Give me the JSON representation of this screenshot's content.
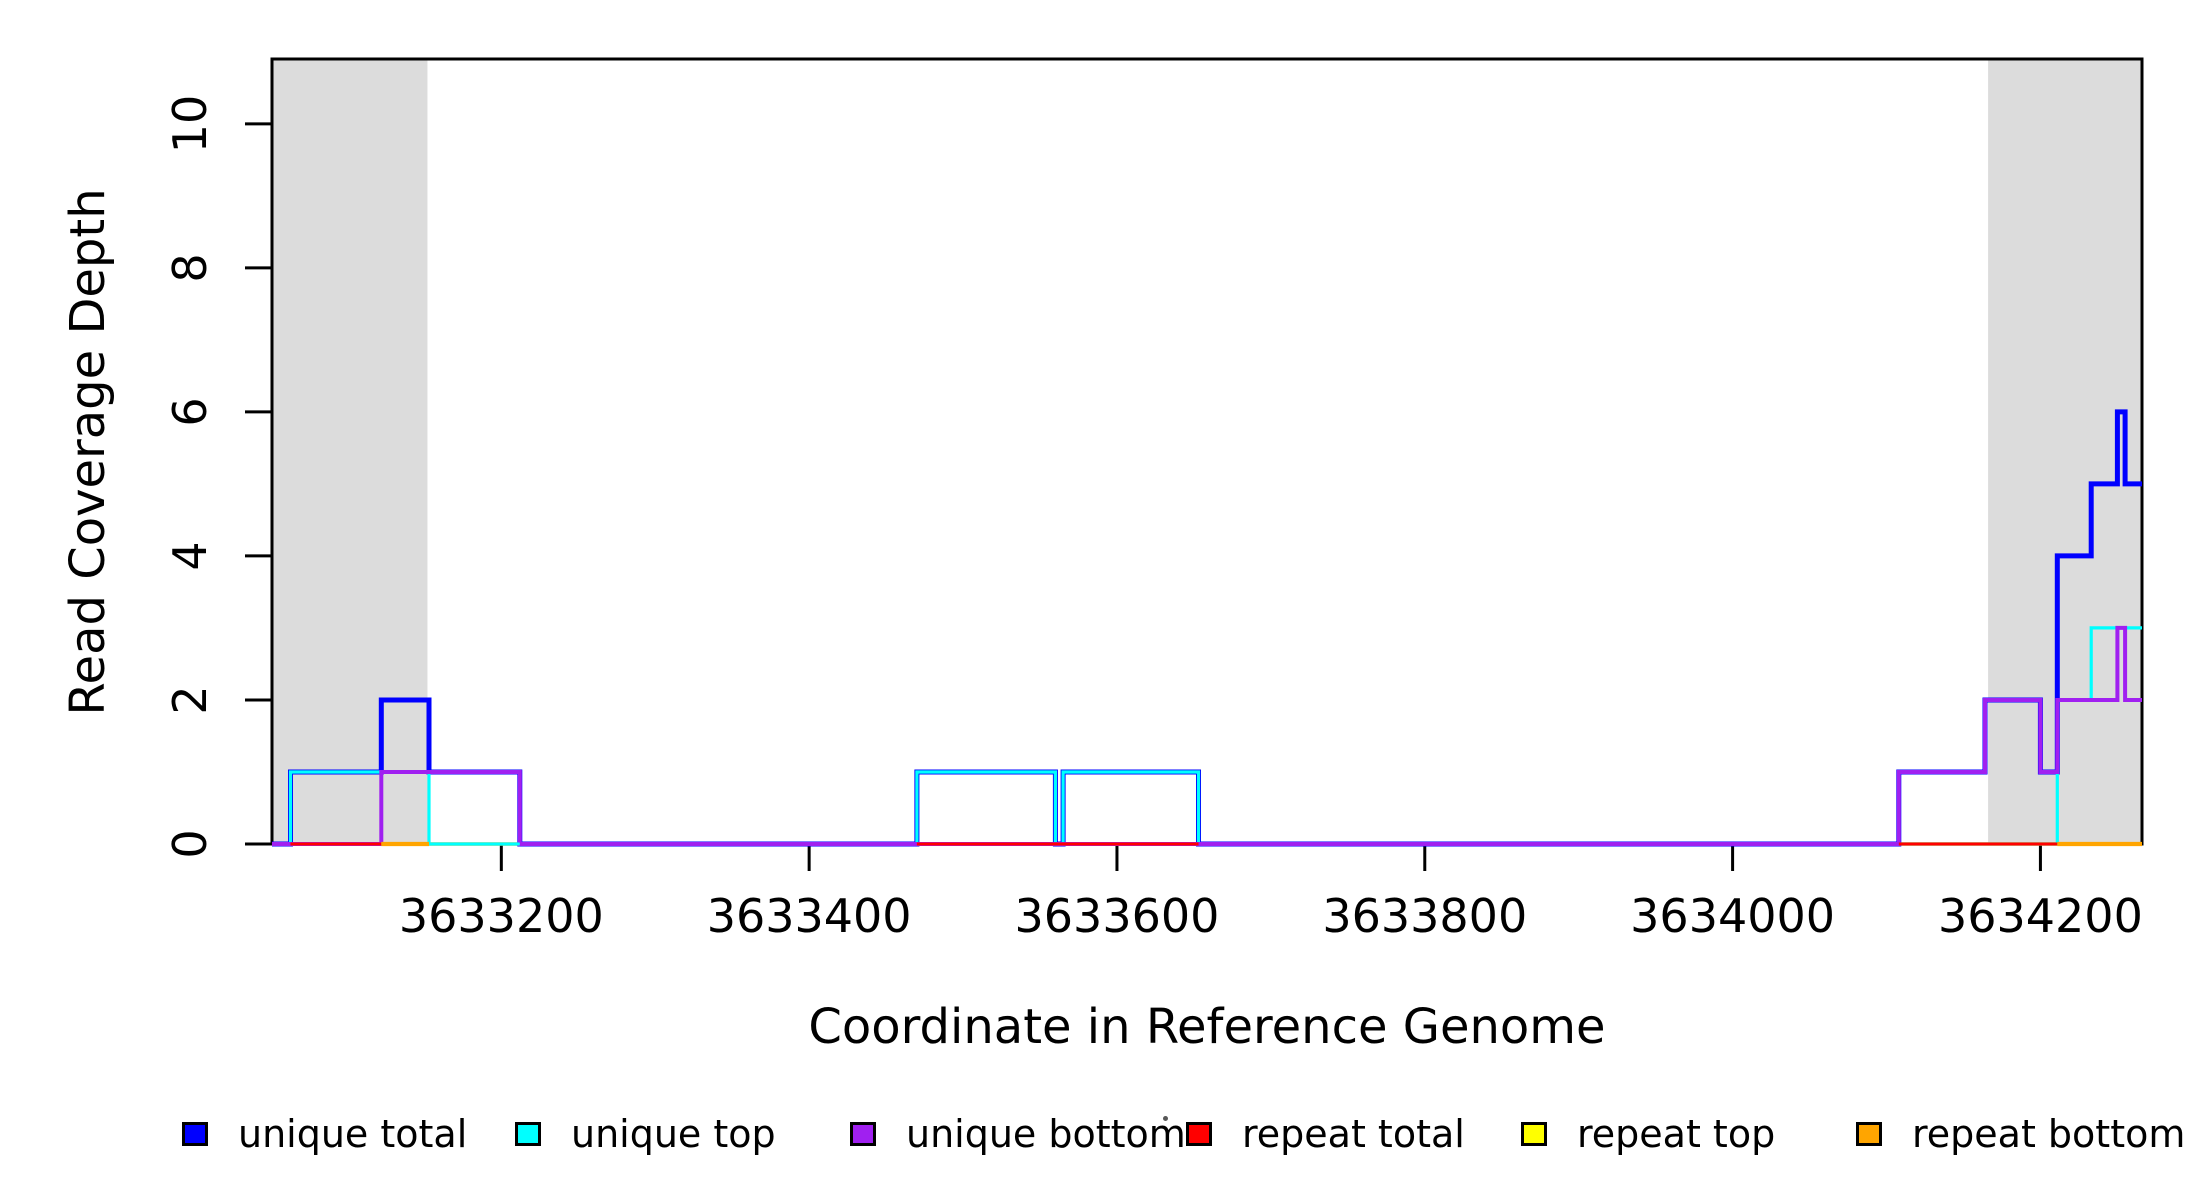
{
  "chart_data": {
    "type": "line",
    "subtype": "step-coverage-plot",
    "title": "",
    "xlabel": "Coordinate in Reference Genome",
    "ylabel": "Read Coverage Depth",
    "xlim": [
      3633051,
      3634266
    ],
    "ylim": [
      0,
      10.9
    ],
    "grid": false,
    "legend_position": "bottom",
    "x_ticks": [
      3633200,
      3633400,
      3633600,
      3633800,
      3634000,
      3634200
    ],
    "y_ticks": [
      0,
      2,
      4,
      6,
      8,
      10
    ],
    "shaded_regions": [
      {
        "label": "left-gray-region",
        "x0": 3633051,
        "x1": 3633152,
        "color": "#DCDCDC"
      },
      {
        "label": "right-gray-region",
        "x0": 3634166,
        "x1": 3634266,
        "color": "#DCDCDC"
      }
    ],
    "series": [
      {
        "name": "unique total",
        "color": "#0000FF",
        "points": [
          [
            3633051,
            0
          ],
          [
            3633063,
            1
          ],
          [
            3633122,
            2
          ],
          [
            3633153,
            1
          ],
          [
            3633212,
            0
          ],
          [
            3633470,
            1
          ],
          [
            3633560,
            0
          ],
          [
            3633565,
            1
          ],
          [
            3633653,
            0
          ],
          [
            3634108,
            1
          ],
          [
            3634164,
            2
          ],
          [
            3634200,
            1
          ],
          [
            3634211,
            4
          ],
          [
            3634233,
            5
          ],
          [
            3634250,
            6
          ],
          [
            3634255,
            5
          ]
        ]
      },
      {
        "name": "unique top",
        "color": "#00FFFF",
        "points": [
          [
            3633051,
            0
          ],
          [
            3633063,
            1
          ],
          [
            3633153,
            0
          ],
          [
            3633470,
            1
          ],
          [
            3633560,
            0
          ],
          [
            3633565,
            1
          ],
          [
            3633653,
            0
          ],
          [
            3634211,
            2
          ],
          [
            3634233,
            3
          ]
        ]
      },
      {
        "name": "unique bottom",
        "color": "#A020F0",
        "points": [
          [
            3633051,
            0
          ],
          [
            3633122,
            1
          ],
          [
            3633212,
            0
          ],
          [
            3634108,
            1
          ],
          [
            3634164,
            2
          ],
          [
            3634200,
            1
          ],
          [
            3634211,
            2
          ],
          [
            3634250,
            3
          ],
          [
            3634255,
            2
          ]
        ]
      },
      {
        "name": "repeat total",
        "color": "#FF0000",
        "points": [
          [
            3633051,
            0
          ]
        ]
      },
      {
        "name": "repeat top",
        "color": "#FFFF00",
        "points": [
          [
            3633051,
            0
          ]
        ]
      },
      {
        "name": "repeat bottom",
        "color": "#FFA500",
        "points": [
          [
            3633051,
            0
          ]
        ]
      }
    ],
    "zero_line_segments": [
      {
        "series": "repeat total",
        "color": "#FF0000",
        "x0": 3633063,
        "x1": 3633122
      },
      {
        "series": "repeat bottom",
        "color": "#FFA500",
        "x0": 3633122,
        "x1": 3633153
      },
      {
        "series": "unique top",
        "color": "#00FFFF",
        "x0": 3633153,
        "x1": 3633212
      },
      {
        "series": "repeat total",
        "color": "#FF0000",
        "x0": 3633470,
        "x1": 3633653
      },
      {
        "series": "repeat total",
        "color": "#FF0000",
        "x0": 3634108,
        "x1": 3634211
      },
      {
        "series": "repeat bottom",
        "color": "#FFA500",
        "x0": 3634211,
        "x1": 3634266
      }
    ],
    "legend": {
      "entries": [
        {
          "label": "unique total",
          "color": "#0000FF"
        },
        {
          "label": "unique top",
          "color": "#00FFFF"
        },
        {
          "label": "unique bottom",
          "color": "#A020F0"
        },
        {
          "label": "repeat total",
          "color": "#FF0000"
        },
        {
          "label": "repeat top",
          "color": "#FFFF00"
        },
        {
          "label": "repeat bottom",
          "color": "#FFA500"
        }
      ]
    }
  }
}
